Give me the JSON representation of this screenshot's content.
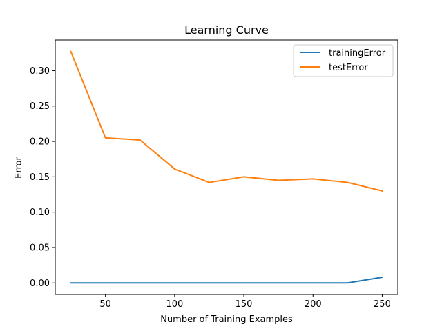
{
  "chart_data": {
    "type": "line",
    "title": "Learning Curve",
    "xlabel": "Number of Training Examples",
    "ylabel": "Error",
    "x": [
      25,
      50,
      75,
      100,
      125,
      150,
      175,
      200,
      225,
      250
    ],
    "series": [
      {
        "name": "trainingError",
        "color": "#1f77b4",
        "values": [
          0.0,
          0.0,
          0.0,
          0.0,
          0.0,
          0.0,
          0.0,
          0.0,
          0.0,
          0.008
        ]
      },
      {
        "name": "testError",
        "color": "#ff7f0e",
        "values": [
          0.327,
          0.205,
          0.202,
          0.161,
          0.142,
          0.15,
          0.145,
          0.147,
          0.142,
          0.13
        ]
      }
    ],
    "xlim": [
      13.75,
      261.25
    ],
    "ylim": [
      -0.0163,
      0.3433
    ],
    "xticks": [
      "50",
      "100",
      "150",
      "200",
      "250"
    ],
    "yticks": [
      "0.00",
      "0.05",
      "0.10",
      "0.15",
      "0.20",
      "0.25",
      "0.30"
    ],
    "grid": false,
    "legend_position": "top-right"
  }
}
